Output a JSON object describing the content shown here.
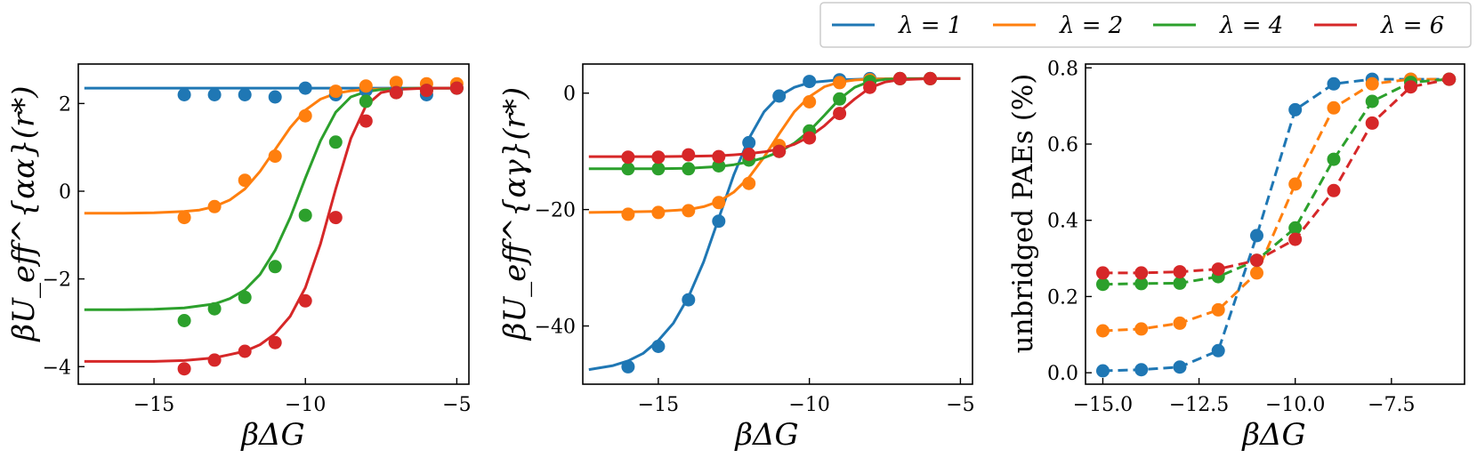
{
  "figure": {
    "legend": {
      "placement": "top-right",
      "entries": [
        "λ = 1",
        "λ = 2",
        "λ = 4",
        "λ = 6"
      ],
      "colors": [
        "#1f77b4",
        "#ff7f0e",
        "#2ca02c",
        "#d62728"
      ]
    }
  },
  "chart_data": [
    {
      "type": "scatter",
      "title": "",
      "xlabel": "βΔG",
      "ylabel": "βU_eff^{αα}(r*)",
      "xlim": [
        -17.5,
        -4.6
      ],
      "ylim": [
        -4.4,
        2.9
      ],
      "xticks": [
        -15,
        -10,
        -5
      ],
      "xtick_labels": [
        "−15",
        "−10",
        "−5"
      ],
      "yticks": [
        -4,
        -2,
        0,
        2
      ],
      "ytick_labels": [
        "−4",
        "−2",
        "0",
        "2"
      ],
      "series": [
        {
          "name": "λ = 1",
          "color": "#1f77b4",
          "points": {
            "x": [
              -14,
              -13,
              -12,
              -11,
              -10,
              -9,
              -8,
              -7,
              -6,
              -5
            ],
            "y": [
              2.2,
              2.2,
              2.2,
              2.15,
              2.35,
              2.2,
              2.3,
              2.3,
              2.2,
              2.35
            ]
          },
          "fit": {
            "x": [
              -17.3,
              -5
            ],
            "y": [
              2.35,
              2.35
            ]
          }
        },
        {
          "name": "λ = 2",
          "color": "#ff7f0e",
          "points": {
            "x": [
              -14,
              -13,
              -12,
              -11,
              -10,
              -9,
              -8,
              -7,
              -6,
              -5
            ],
            "y": [
              -0.6,
              -0.35,
              0.25,
              0.8,
              1.72,
              2.28,
              2.4,
              2.48,
              2.45,
              2.45
            ]
          },
          "fit": {
            "x": [
              -17.3,
              -16,
              -15,
              -14,
              -13.5,
              -13,
              -12.5,
              -12,
              -11.5,
              -11,
              -10.5,
              -10,
              -9.5,
              -9,
              -8.5,
              -8,
              -7,
              -6,
              -5
            ],
            "y": [
              -0.5,
              -0.5,
              -0.49,
              -0.46,
              -0.43,
              -0.35,
              -0.2,
              0.05,
              0.45,
              0.95,
              1.45,
              1.85,
              2.1,
              2.23,
              2.29,
              2.32,
              2.34,
              2.35,
              2.35
            ]
          }
        },
        {
          "name": "λ = 4",
          "color": "#2ca02c",
          "points": {
            "x": [
              -14,
              -13,
              -12,
              -11,
              -10,
              -9,
              -8,
              -7,
              -6,
              -5
            ],
            "y": [
              -2.95,
              -2.68,
              -2.42,
              -1.72,
              -0.55,
              1.12,
              2.05,
              2.25,
              2.3,
              2.35
            ]
          },
          "fit": {
            "x": [
              -17.3,
              -16,
              -15,
              -14,
              -13,
              -12.5,
              -12,
              -11.5,
              -11,
              -10.5,
              -10,
              -9.5,
              -9,
              -8.5,
              -8,
              -7.5,
              -7,
              -6,
              -5
            ],
            "y": [
              -2.7,
              -2.7,
              -2.69,
              -2.66,
              -2.57,
              -2.45,
              -2.25,
              -1.9,
              -1.35,
              -0.6,
              0.3,
              1.15,
              1.8,
              2.15,
              2.27,
              2.32,
              2.34,
              2.35,
              2.35
            ]
          }
        },
        {
          "name": "λ = 6",
          "color": "#d62728",
          "points": {
            "x": [
              -14,
              -13,
              -12,
              -11,
              -10,
              -9,
              -8,
              -7,
              -6,
              -5
            ],
            "y": [
              -4.05,
              -3.85,
              -3.65,
              -3.45,
              -2.5,
              -0.6,
              1.6,
              2.25,
              2.3,
              2.35
            ]
          },
          "fit": {
            "x": [
              -17.3,
              -15,
              -14,
              -13,
              -12,
              -11.5,
              -11,
              -10.5,
              -10,
              -9.5,
              -9,
              -8.5,
              -8,
              -7.5,
              -7,
              -6,
              -5
            ],
            "y": [
              -3.88,
              -3.88,
              -3.86,
              -3.8,
              -3.65,
              -3.5,
              -3.25,
              -2.85,
              -2.2,
              -1.2,
              0.05,
              1.2,
              1.95,
              2.25,
              2.32,
              2.35,
              2.35
            ]
          }
        }
      ]
    },
    {
      "type": "scatter",
      "title": "",
      "xlabel": "βΔG",
      "ylabel": "βU_eff^{αγ}(r*)",
      "xlim": [
        -17.5,
        -4.6
      ],
      "ylim": [
        -50,
        5
      ],
      "xticks": [
        -15,
        -10,
        -5
      ],
      "xtick_labels": [
        "−15",
        "−10",
        "−5"
      ],
      "yticks": [
        -40,
        -20,
        0
      ],
      "ytick_labels": [
        "−40",
        "−20",
        "0"
      ],
      "series": [
        {
          "name": "λ = 1",
          "color": "#1f77b4",
          "points": {
            "x": [
              -16,
              -15,
              -14,
              -13,
              -12,
              -11,
              -10,
              -9,
              -8,
              -7,
              -6
            ],
            "y": [
              -47,
              -43.5,
              -35.5,
              -22,
              -8.5,
              -0.5,
              2,
              2.3,
              2.5,
              2.5,
              2.5
            ]
          },
          "fit": {
            "x": [
              -17.3,
              -16.5,
              -16,
              -15.5,
              -15,
              -14.5,
              -14,
              -13.5,
              -13,
              -12.5,
              -12,
              -11.5,
              -11,
              -10.5,
              -10,
              -9,
              -8,
              -7,
              -6,
              -5
            ],
            "y": [
              -47.5,
              -46.8,
              -46,
              -44.7,
              -42.5,
              -39.5,
              -35,
              -29,
              -21.5,
              -14,
              -7.8,
              -3.2,
              -0.5,
              1,
              1.8,
              2.3,
              2.45,
              2.5,
              2.5,
              2.5
            ]
          }
        },
        {
          "name": "λ = 2",
          "color": "#ff7f0e",
          "points": {
            "x": [
              -16,
              -15,
              -14,
              -13,
              -12,
              -11,
              -10,
              -9,
              -8,
              -7,
              -6
            ],
            "y": [
              -20.8,
              -20.5,
              -20.2,
              -18.8,
              -15.5,
              -9,
              -1.5,
              1.8,
              2.3,
              2.5,
              2.5
            ]
          },
          "fit": {
            "x": [
              -17.3,
              -16,
              -15,
              -14,
              -13.5,
              -13,
              -12.5,
              -12,
              -11.5,
              -11,
              -10.5,
              -10,
              -9.5,
              -9,
              -8.5,
              -8,
              -7,
              -6,
              -5
            ],
            "y": [
              -20.5,
              -20.4,
              -20.3,
              -20,
              -19.5,
              -18.6,
              -17,
              -14.5,
              -11,
              -7,
              -3.2,
              -0.6,
              1.1,
              1.9,
              2.25,
              2.4,
              2.5,
              2.5,
              2.5
            ]
          }
        },
        {
          "name": "λ = 4",
          "color": "#2ca02c",
          "points": {
            "x": [
              -16,
              -15,
              -14,
              -13,
              -12,
              -11,
              -10,
              -9,
              -8,
              -7,
              -6
            ],
            "y": [
              -13,
              -13,
              -13,
              -12.5,
              -11.5,
              -10,
              -6.5,
              -1,
              2,
              2.5,
              2.5
            ]
          },
          "fit": {
            "x": [
              -17.3,
              -15,
              -14,
              -13,
              -12.5,
              -12,
              -11.5,
              -11,
              -10.5,
              -10,
              -9.5,
              -9,
              -8.5,
              -8,
              -7.5,
              -7,
              -6,
              -5
            ],
            "y": [
              -13,
              -13,
              -12.9,
              -12.6,
              -12.3,
              -11.8,
              -11.1,
              -10.1,
              -8.6,
              -6.5,
              -3.8,
              -1,
              1,
              2,
              2.35,
              2.45,
              2.5,
              2.5
            ]
          }
        },
        {
          "name": "λ = 6",
          "color": "#d62728",
          "points": {
            "x": [
              -16,
              -15,
              -14,
              -13,
              -12,
              -11,
              -10,
              -9,
              -8,
              -7,
              -6
            ],
            "y": [
              -11,
              -11,
              -10.6,
              -10.9,
              -10.5,
              -10,
              -7.7,
              -3.5,
              1,
              2.5,
              2.5
            ]
          },
          "fit": {
            "x": [
              -17.3,
              -15,
              -14,
              -13,
              -12.5,
              -12,
              -11.5,
              -11,
              -10.5,
              -10,
              -9.5,
              -9,
              -8.5,
              -8,
              -7.5,
              -7,
              -6,
              -5
            ],
            "y": [
              -10.9,
              -10.9,
              -10.85,
              -10.75,
              -10.6,
              -10.4,
              -10.1,
              -9.6,
              -8.8,
              -7.5,
              -5.6,
              -3.2,
              -1,
              0.9,
              1.9,
              2.3,
              2.5,
              2.5
            ]
          }
        }
      ]
    },
    {
      "type": "line",
      "title": "",
      "xlabel": "βΔG",
      "ylabel": "unbridged PAEs (%)",
      "xlim": [
        -15.45,
        -5.6
      ],
      "ylim": [
        -0.03,
        0.81
      ],
      "xticks": [
        -15,
        -12.5,
        -10,
        -7.5
      ],
      "xtick_labels": [
        "−15.0",
        "−12.5",
        "−10.0",
        "−7.5"
      ],
      "yticks": [
        0,
        0.2,
        0.4,
        0.6,
        0.8
      ],
      "ytick_labels": [
        "0.0",
        "0.2",
        "0.4",
        "0.6",
        "0.8"
      ],
      "series": [
        {
          "name": "λ = 1",
          "color": "#1f77b4",
          "points": {
            "x": [
              -15,
              -14,
              -13,
              -12,
              -11,
              -10,
              -9,
              -8,
              -7,
              -6
            ],
            "y": [
              0.005,
              0.008,
              0.015,
              0.058,
              0.36,
              0.69,
              0.758,
              0.77,
              0.77,
              0.77
            ]
          }
        },
        {
          "name": "λ = 2",
          "color": "#ff7f0e",
          "points": {
            "x": [
              -15,
              -14,
              -13,
              -12,
              -11,
              -10,
              -9,
              -8,
              -7,
              -6
            ],
            "y": [
              0.11,
              0.115,
              0.13,
              0.165,
              0.262,
              0.495,
              0.695,
              0.758,
              0.77,
              0.77
            ]
          }
        },
        {
          "name": "λ = 4",
          "color": "#2ca02c",
          "points": {
            "x": [
              -15,
              -14,
              -13,
              -12,
              -11,
              -10,
              -9,
              -8,
              -7,
              -6
            ],
            "y": [
              0.232,
              0.234,
              0.235,
              0.252,
              0.295,
              0.38,
              0.56,
              0.712,
              0.762,
              0.77
            ]
          }
        },
        {
          "name": "λ = 6",
          "color": "#d62728",
          "points": {
            "x": [
              -15,
              -14,
              -13,
              -12,
              -11,
              -10,
              -9,
              -8,
              -7,
              -6
            ],
            "y": [
              0.262,
              0.262,
              0.265,
              0.272,
              0.295,
              0.35,
              0.478,
              0.655,
              0.75,
              0.77
            ]
          }
        }
      ]
    }
  ]
}
